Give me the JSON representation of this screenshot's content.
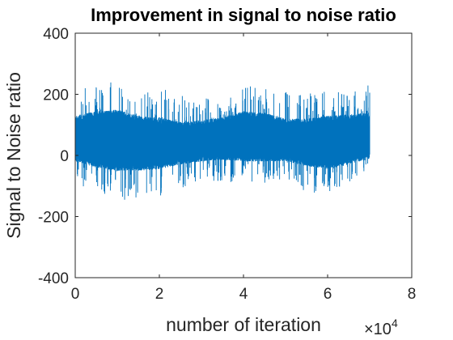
{
  "chart_data": {
    "type": "line",
    "title": "Improvement in signal to noise ratio",
    "xlabel": "number of iteration",
    "ylabel": "Signal to Noise ratio",
    "x_multiplier": {
      "base": "×10",
      "exponent": "4"
    },
    "xlim": [
      0,
      80000
    ],
    "ylim": [
      -400,
      400
    ],
    "xticks": [
      0,
      20000,
      40000,
      60000,
      80000
    ],
    "xtick_labels": [
      "0",
      "2",
      "4",
      "6",
      "8"
    ],
    "yticks": [
      -400,
      -200,
      0,
      200,
      400
    ],
    "ytick_labels": [
      "-400",
      "-200",
      "0",
      "200",
      "400"
    ],
    "grid": false,
    "box": true,
    "series": [
      {
        "color": "#0072BD",
        "x_range": [
          0,
          70000
        ],
        "envelope_x": [
          0,
          5000,
          10000,
          15000,
          20000,
          25000,
          30000,
          35000,
          40000,
          45000,
          50000,
          55000,
          60000,
          65000,
          70000
        ],
        "envelope_upper": [
          240,
          230,
          250,
          205,
          225,
          210,
          200,
          185,
          225,
          235,
          210,
          205,
          210,
          205,
          235
        ],
        "envelope_lower": [
          -90,
          -120,
          -150,
          -140,
          -140,
          -120,
          -80,
          -85,
          -90,
          -95,
          -85,
          -120,
          -130,
          -90,
          -50
        ],
        "typical_upper": [
          130,
          145,
          150,
          130,
          125,
          110,
          115,
          125,
          145,
          140,
          120,
          120,
          130,
          135,
          140
        ],
        "typical_lower": [
          -20,
          -40,
          -50,
          -50,
          -45,
          -30,
          -20,
          -15,
          -20,
          -20,
          -20,
          -35,
          -45,
          -30,
          -10
        ]
      }
    ]
  }
}
